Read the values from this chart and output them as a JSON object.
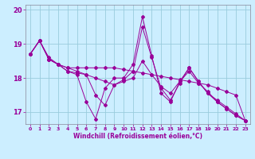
{
  "xlabel": "Windchill (Refroidissement éolien,°C)",
  "xlim": [
    -0.5,
    23.5
  ],
  "ylim": [
    16.65,
    20.15
  ],
  "yticks": [
    17,
    18,
    19,
    20
  ],
  "xticks": [
    0,
    1,
    2,
    3,
    4,
    5,
    6,
    7,
    8,
    9,
    10,
    11,
    12,
    13,
    14,
    15,
    16,
    17,
    18,
    19,
    20,
    21,
    22,
    23
  ],
  "bg_color": "#cceeff",
  "grid_color": "#99ccdd",
  "line_color": "#990099",
  "lines": [
    [
      18.7,
      19.1,
      18.6,
      18.4,
      18.2,
      18.1,
      17.3,
      16.8,
      17.7,
      18.0,
      18.0,
      18.4,
      19.8,
      18.65,
      17.55,
      17.3,
      17.9,
      18.3,
      17.9,
      17.55,
      17.3,
      17.1,
      16.9,
      16.75
    ],
    [
      18.7,
      19.1,
      18.55,
      18.4,
      18.3,
      18.3,
      18.3,
      18.3,
      18.3,
      18.3,
      18.25,
      18.2,
      18.15,
      18.1,
      18.05,
      18.0,
      17.95,
      17.9,
      17.85,
      17.8,
      17.7,
      17.6,
      17.5,
      16.75
    ],
    [
      18.7,
      19.1,
      18.55,
      18.4,
      18.3,
      18.2,
      18.1,
      18.0,
      17.9,
      17.8,
      17.9,
      18.0,
      18.5,
      18.1,
      17.75,
      17.55,
      17.9,
      18.2,
      17.85,
      17.6,
      17.3,
      17.1,
      16.9,
      16.75
    ],
    [
      18.7,
      19.1,
      18.55,
      18.4,
      18.2,
      18.15,
      18.1,
      17.5,
      17.2,
      17.8,
      17.95,
      18.2,
      19.5,
      18.6,
      17.7,
      17.35,
      17.85,
      18.3,
      17.9,
      17.55,
      17.35,
      17.15,
      16.95,
      16.75
    ]
  ]
}
